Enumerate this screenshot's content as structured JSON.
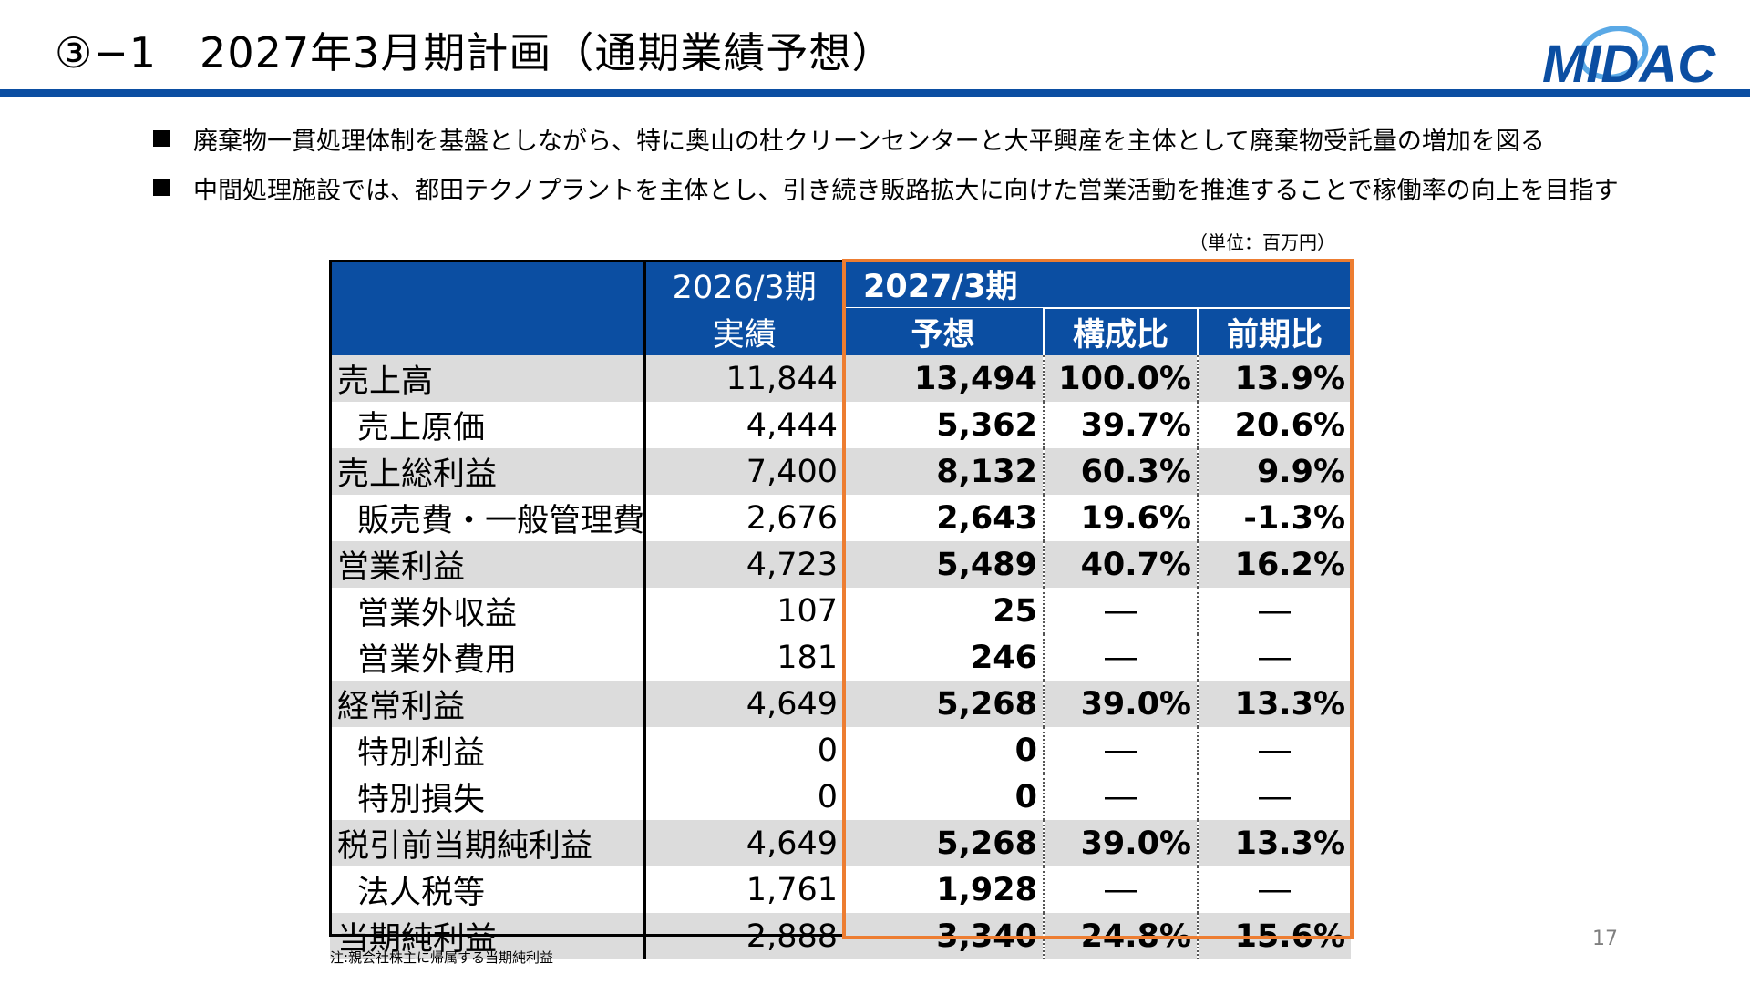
{
  "title": "③−1　2027年3月期計画（通期業績予想）",
  "logo_text": "MIDAC",
  "colors": {
    "brand_blue": "#0b4ea2",
    "accent_orange": "#ed7d31",
    "row_shade": "#dcdcdc"
  },
  "bullets": [
    "廃棄物一貫処理体制を基盤としながら、特に奥山の杜クリーンセンターと大平興産を主体として廃棄物受託量の増加を図る",
    "中間処理施設では、都田テクノプラントを主体とし、引き続き販路拡大に向けた営業活動を推進することで稼働率の向上を目指す"
  ],
  "unit": "（単位：百万円）",
  "table": {
    "header": {
      "col1_line1": "2026/3期",
      "col1_line2": "実績",
      "col2_line1": "2027/3期",
      "col2_line2": "予想",
      "col3": "構成比",
      "col4": "前期比"
    },
    "rows": [
      {
        "label": "売上高",
        "actual": "11,844",
        "plan": "13,494",
        "ratio": "100.0%",
        "yoy": "13.9%"
      },
      {
        "label": "売上原価",
        "actual": "4,444",
        "plan": "5,362",
        "ratio": "39.7%",
        "yoy": "20.6%"
      },
      {
        "label": "売上総利益",
        "actual": "7,400",
        "plan": "8,132",
        "ratio": "60.3%",
        "yoy": "9.9%"
      },
      {
        "label": "販売費・一般管理費",
        "actual": "2,676",
        "plan": "2,643",
        "ratio": "19.6%",
        "yoy": "-1.3%"
      },
      {
        "label": "営業利益",
        "actual": "4,723",
        "plan": "5,489",
        "ratio": "40.7%",
        "yoy": "16.2%"
      },
      {
        "label": "営業外収益",
        "actual": "107",
        "plan": "25",
        "ratio": "―",
        "yoy": "―"
      },
      {
        "label": "営業外費用",
        "actual": "181",
        "plan": "246",
        "ratio": "―",
        "yoy": "―"
      },
      {
        "label": "経常利益",
        "actual": "4,649",
        "plan": "5,268",
        "ratio": "39.0%",
        "yoy": "13.3%"
      },
      {
        "label": "特別利益",
        "actual": "0",
        "plan": "0",
        "ratio": "―",
        "yoy": "―"
      },
      {
        "label": "特別損失",
        "actual": "0",
        "plan": "0",
        "ratio": "―",
        "yoy": "―"
      },
      {
        "label": "税引前当期純利益",
        "actual": "4,649",
        "plan": "5,268",
        "ratio": "39.0%",
        "yoy": "13.3%"
      },
      {
        "label": "法人税等",
        "actual": "1,761",
        "plan": "1,928",
        "ratio": "―",
        "yoy": "―"
      },
      {
        "label": "当期純利益",
        "actual": "2,888",
        "plan": "3,340",
        "ratio": "24.8%",
        "yoy": "15.6%"
      }
    ]
  },
  "note": "注:親会社株主に帰属する当期純利益",
  "page_number": "17"
}
